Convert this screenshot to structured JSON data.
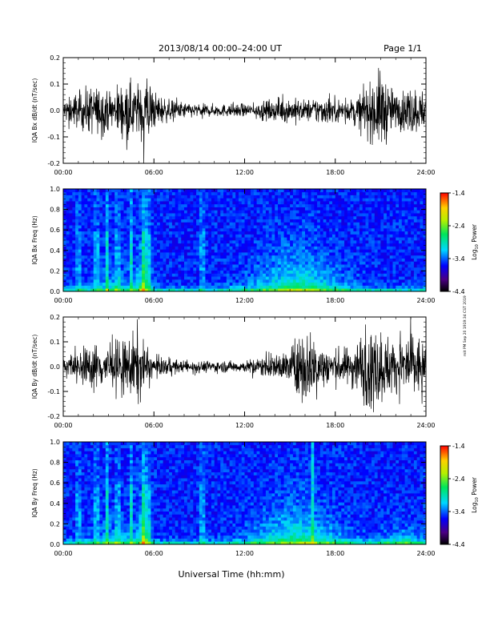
{
  "header": {
    "title": "2013/08/14  00:00–24:00 UT",
    "page": "Page 1/1"
  },
  "side_note": "mit PM Sep 20 1919:34 CST 2019",
  "xlabel": "Universal Time (hh:mm)",
  "x_ticks": [
    "00:00",
    "06:00",
    "12:00",
    "18:00",
    "24:00"
  ],
  "colors": {
    "trace": "#000000",
    "background": "#ffffff"
  },
  "colorbar": {
    "label_base": "Log",
    "label_sub": "10",
    "label_suffix": " Power",
    "ticks": [
      "-1.4",
      "-2.4",
      "-3.4",
      "-4.4"
    ],
    "range": [
      -4.4,
      -1.4
    ],
    "colormap": "rainbow"
  },
  "chart_data": [
    {
      "type": "line",
      "ylabel": "IQA Bx dB/dt (nT/sec)",
      "x_range_hours": [
        0,
        24
      ],
      "ylim": [
        -0.2,
        0.2
      ],
      "y_ticks": [
        "0.2",
        "0.1",
        "0.0",
        "-0.1",
        "-0.2"
      ],
      "envelope": {
        "x_hours": [
          0,
          1,
          2,
          3,
          4,
          5,
          5.5,
          6,
          7,
          8,
          9,
          10,
          11,
          12,
          13,
          14,
          15,
          16,
          17,
          18,
          19,
          20,
          21,
          22,
          23,
          24
        ],
        "amplitude": [
          0.05,
          0.09,
          0.12,
          0.09,
          0.14,
          0.13,
          0.2,
          0.09,
          0.05,
          0.04,
          0.03,
          0.03,
          0.03,
          0.03,
          0.04,
          0.05,
          0.06,
          0.05,
          0.07,
          0.06,
          0.05,
          0.1,
          0.2,
          0.08,
          0.12,
          0.09
        ]
      }
    },
    {
      "type": "heatmap",
      "ylabel": "IQA Bx Freq (Hz)",
      "x_range_hours": [
        0,
        24
      ],
      "ylim": [
        0,
        1.0
      ],
      "y_ticks": [
        "1.0",
        "0.8",
        "0.6",
        "0.4",
        "0.2",
        "0.0"
      ],
      "value_range": [
        -4.4,
        -1.4
      ]
    },
    {
      "type": "line",
      "ylabel": "IQA By dB/dt (nT/sec)",
      "x_range_hours": [
        0,
        24
      ],
      "ylim": [
        -0.2,
        0.2
      ],
      "y_ticks": [
        "0.2",
        "0.1",
        "0.0",
        "-0.1",
        "-0.2"
      ],
      "envelope": {
        "x_hours": [
          0,
          1,
          2,
          3,
          4,
          5,
          5.5,
          6,
          7,
          8,
          9,
          10,
          11,
          12,
          13,
          14,
          15,
          16,
          17,
          18,
          19,
          20,
          21,
          22,
          23,
          24
        ],
        "amplitude": [
          0.04,
          0.08,
          0.12,
          0.11,
          0.13,
          0.2,
          0.09,
          0.05,
          0.04,
          0.03,
          0.03,
          0.03,
          0.03,
          0.03,
          0.05,
          0.06,
          0.09,
          0.2,
          0.12,
          0.09,
          0.1,
          0.2,
          0.2,
          0.12,
          0.2,
          0.12
        ]
      }
    },
    {
      "type": "heatmap",
      "ylabel": "IQA By Freq (Hz)",
      "x_range_hours": [
        0,
        24
      ],
      "ylim": [
        0,
        1.0
      ],
      "y_ticks": [
        "1.0",
        "0.8",
        "0.6",
        "0.4",
        "0.2",
        "0.0"
      ],
      "value_range": [
        -4.4,
        -1.4
      ]
    }
  ]
}
